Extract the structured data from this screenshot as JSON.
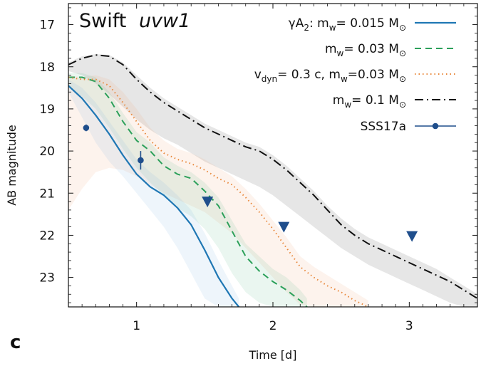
{
  "chart_data": {
    "type": "line",
    "title": "Swift",
    "title_italic": "uvw1",
    "panel_label": "c",
    "xlabel": "Time [d]",
    "ylabel": "AB magnitude",
    "xlim": [
      0.5,
      3.5
    ],
    "ylim": [
      23.7,
      16.5
    ],
    "y_inverted": true,
    "x_ticks": [
      1,
      2,
      3
    ],
    "y_ticks": [
      17,
      18,
      19,
      20,
      21,
      22,
      23
    ],
    "legend_position": "top-right",
    "series": [
      {
        "name": "gamma-A2",
        "label_parts": [
          "γA",
          "2",
          ": m",
          "w",
          "= 0.015 M",
          "⊙"
        ],
        "color": "#1f77b4",
        "line": "solid",
        "x": [
          0.5,
          0.6,
          0.7,
          0.8,
          0.9,
          1.0,
          1.1,
          1.2,
          1.3,
          1.4,
          1.5,
          1.6,
          1.7,
          1.75
        ],
        "y": [
          18.45,
          18.75,
          19.15,
          19.6,
          20.1,
          20.55,
          20.85,
          21.05,
          21.35,
          21.75,
          22.35,
          23.0,
          23.5,
          23.7
        ],
        "band_upper": [
          18.3,
          18.5,
          18.85,
          19.3,
          19.75,
          20.2,
          20.5,
          20.75,
          21.05,
          21.4,
          21.95,
          22.6,
          23.2,
          23.5
        ],
        "band_lower": [
          18.6,
          19.2,
          19.8,
          20.25,
          20.6,
          21.0,
          21.4,
          21.8,
          22.3,
          22.9,
          23.5,
          23.7,
          23.7,
          23.7
        ]
      },
      {
        "name": "mw-0.03",
        "label_parts": [
          "m",
          "w",
          "= 0.03 M",
          "⊙"
        ],
        "color": "#2ca05a",
        "line": "dashed",
        "x": [
          0.5,
          0.6,
          0.7,
          0.8,
          0.9,
          1.0,
          1.1,
          1.2,
          1.3,
          1.4,
          1.5,
          1.6,
          1.7,
          1.8,
          1.9,
          2.0,
          2.1,
          2.2,
          2.25
        ],
        "y": [
          18.25,
          18.25,
          18.35,
          18.75,
          19.3,
          19.75,
          20.0,
          20.35,
          20.55,
          20.65,
          20.95,
          21.3,
          21.9,
          22.5,
          22.85,
          23.1,
          23.3,
          23.55,
          23.7
        ],
        "band_upper": [
          18.15,
          18.15,
          18.25,
          18.6,
          19.1,
          19.55,
          19.8,
          20.15,
          20.35,
          20.5,
          20.75,
          21.1,
          21.65,
          22.2,
          22.5,
          22.8,
          23.0,
          23.3,
          23.5
        ],
        "band_lower": [
          18.5,
          18.7,
          19.0,
          19.45,
          19.95,
          20.4,
          20.75,
          21.05,
          21.35,
          21.55,
          21.85,
          22.3,
          22.9,
          23.35,
          23.6,
          23.7,
          23.7,
          23.7,
          23.7
        ]
      },
      {
        "name": "vdyn-0.3c",
        "label_parts": [
          "v",
          "dyn",
          "= 0.3 c, m",
          "w",
          "=0.03 M",
          "⊙"
        ],
        "color": "#e8873a",
        "line": "dotted",
        "x": [
          0.5,
          0.6,
          0.7,
          0.8,
          0.9,
          1.0,
          1.1,
          1.2,
          1.3,
          1.4,
          1.5,
          1.6,
          1.7,
          1.8,
          1.9,
          2.0,
          2.1,
          2.2,
          2.3,
          2.4,
          2.5,
          2.6,
          2.7
        ],
        "y": [
          18.25,
          18.3,
          18.3,
          18.45,
          18.85,
          19.3,
          19.75,
          20.05,
          20.2,
          20.3,
          20.45,
          20.65,
          20.8,
          21.1,
          21.45,
          21.85,
          22.3,
          22.75,
          23.0,
          23.2,
          23.35,
          23.55,
          23.7
        ],
        "band_upper": [
          18.2,
          18.25,
          18.2,
          18.3,
          18.6,
          19.0,
          19.45,
          19.75,
          19.95,
          20.05,
          20.2,
          20.4,
          20.6,
          20.9,
          21.25,
          21.65,
          22.05,
          22.5,
          22.75,
          22.95,
          23.15,
          23.35,
          23.55
        ],
        "band_lower": [
          21.4,
          20.9,
          20.5,
          20.4,
          20.45,
          20.6,
          20.8,
          21.0,
          21.15,
          21.3,
          21.45,
          21.7,
          21.95,
          22.3,
          22.65,
          23.0,
          23.35,
          23.65,
          23.7,
          23.7,
          23.7,
          23.7,
          23.7
        ]
      },
      {
        "name": "mw-0.1",
        "label_parts": [
          "m",
          "w",
          "= 0.1 M",
          "⊙"
        ],
        "color": "#111111",
        "line": "dashdot",
        "x": [
          0.5,
          0.6,
          0.7,
          0.8,
          0.9,
          1.0,
          1.1,
          1.2,
          1.3,
          1.4,
          1.5,
          1.6,
          1.7,
          1.8,
          1.9,
          2.0,
          2.1,
          2.2,
          2.3,
          2.4,
          2.5,
          2.6,
          2.7,
          2.8,
          2.9,
          3.0,
          3.1,
          3.2,
          3.3,
          3.4,
          3.5
        ],
        "y": [
          17.95,
          17.8,
          17.72,
          17.75,
          17.95,
          18.3,
          18.6,
          18.85,
          19.05,
          19.25,
          19.45,
          19.6,
          19.75,
          19.9,
          20.0,
          20.2,
          20.45,
          20.75,
          21.05,
          21.4,
          21.75,
          22.0,
          22.2,
          22.35,
          22.5,
          22.65,
          22.8,
          22.95,
          23.1,
          23.3,
          23.5
        ],
        "band_upper": [
          17.9,
          17.75,
          17.7,
          17.72,
          17.9,
          18.2,
          18.5,
          18.75,
          18.95,
          19.15,
          19.35,
          19.5,
          19.65,
          19.8,
          19.9,
          20.1,
          20.35,
          20.65,
          20.95,
          21.3,
          21.6,
          21.85,
          22.05,
          22.2,
          22.35,
          22.5,
          22.65,
          22.8,
          23.0,
          23.2,
          23.4
        ],
        "band_lower": [
          18.1,
          18.2,
          18.4,
          18.65,
          18.95,
          19.25,
          19.5,
          19.7,
          19.85,
          20.05,
          20.25,
          20.4,
          20.55,
          20.7,
          20.85,
          21.05,
          21.3,
          21.55,
          21.8,
          22.05,
          22.3,
          22.5,
          22.7,
          22.85,
          23.0,
          23.15,
          23.3,
          23.45,
          23.6,
          23.7,
          23.7
        ]
      }
    ],
    "observations": {
      "name": "SSS17a",
      "label": "SSS17a",
      "color": "#1f4e8c",
      "detections": [
        {
          "x": 0.63,
          "y": 19.45,
          "yerr": 0.08
        },
        {
          "x": 1.03,
          "y": 20.22,
          "yerr": 0.22
        }
      ],
      "upper_limits": [
        {
          "x": 1.52,
          "y": 21.2
        },
        {
          "x": 2.08,
          "y": 21.8
        },
        {
          "x": 3.02,
          "y": 22.02
        }
      ]
    }
  }
}
